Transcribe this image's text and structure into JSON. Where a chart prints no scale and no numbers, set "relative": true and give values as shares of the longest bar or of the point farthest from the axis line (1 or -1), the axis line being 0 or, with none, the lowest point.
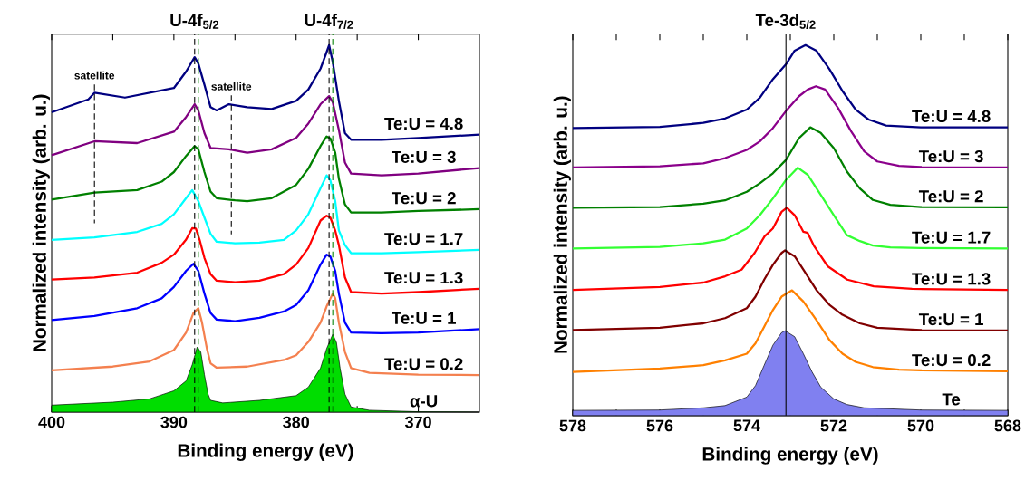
{
  "chart_data": [
    {
      "type": "line",
      "relative": true,
      "xlabel": "Binding energy (eV)",
      "ylabel": "Normalized intensity (arb. u.)",
      "xlim": [
        400,
        365
      ],
      "xticks": [
        400,
        {
          "value": 395,
          "label": null
        },
        390,
        {
          "value": 385,
          "label": null
        },
        380,
        {
          "value": 375,
          "label": null
        },
        370
      ],
      "line_style": "solid",
      "ref_lines": [
        {
          "axis": "x",
          "value": 388.3,
          "label": "U-4f$_{5/2}$",
          "color": "#000000",
          "line_style": "dashed"
        },
        {
          "axis": "x",
          "value": 388.0,
          "label": null,
          "color": "#008000",
          "line_style": "dashed"
        },
        {
          "axis": "x",
          "value": 377.3,
          "label": "U-4f$_{7/2}$",
          "color": "#000000",
          "line_style": "dashed"
        },
        {
          "axis": "x",
          "value": 377.0,
          "label": null,
          "color": "#008000",
          "line_style": "dashed"
        }
      ],
      "annotations": [
        {
          "text": "satellite",
          "x": 396.5,
          "y": 0.87
        },
        {
          "text": "satellite",
          "x": 385.3,
          "y": 0.84
        }
      ],
      "series": [
        {
          "name": "Te:U = 4.8",
          "color": "#000080",
          "x": [
            400,
            397,
            396.5,
            394,
            392,
            390,
            389,
            388.3,
            388,
            387.5,
            387,
            386.5,
            385.5,
            384,
            382,
            380,
            379,
            378,
            377.5,
            377.3,
            377,
            376.5,
            376,
            375.5,
            373,
            370,
            365
          ],
          "values": [
            0.817,
            0.852,
            0.87,
            0.857,
            0.87,
            0.883,
            0.928,
            0.967,
            0.95,
            0.892,
            0.831,
            0.822,
            0.839,
            0.831,
            0.826,
            0.848,
            0.879,
            0.936,
            0.981,
            1.0,
            0.954,
            0.848,
            0.76,
            0.742,
            0.742,
            0.747,
            0.756
          ]
        },
        {
          "name": "Te:U = 3",
          "color": "#800080",
          "x": [
            400,
            396.5,
            393,
            390,
            389,
            388.3,
            388,
            387.5,
            387,
            385.5,
            384,
            382,
            380,
            379,
            378,
            377.3,
            377,
            376.5,
            376,
            375.5,
            373,
            370,
            365
          ],
          "values": [
            0.7,
            0.738,
            0.733,
            0.764,
            0.804,
            0.839,
            0.822,
            0.76,
            0.72,
            0.716,
            0.707,
            0.716,
            0.747,
            0.786,
            0.839,
            0.861,
            0.844,
            0.769,
            0.68,
            0.65,
            0.645,
            0.65,
            0.665
          ]
        },
        {
          "name": "Te:U = 2",
          "color": "#008000",
          "x": [
            400,
            396.5,
            393,
            391,
            390,
            389,
            388.3,
            388,
            387.5,
            387,
            386.5,
            385,
            384,
            382,
            380,
            379,
            378,
            377.5,
            377.2,
            376.8,
            376.5,
            376,
            375.5,
            373,
            370,
            365
          ],
          "values": [
            0.579,
            0.598,
            0.605,
            0.628,
            0.654,
            0.698,
            0.725,
            0.716,
            0.654,
            0.601,
            0.583,
            0.577,
            0.575,
            0.583,
            0.619,
            0.663,
            0.725,
            0.751,
            0.746,
            0.707,
            0.636,
            0.566,
            0.544,
            0.544,
            0.548,
            0.553
          ]
        },
        {
          "name": "Te:U = 1.7",
          "color": "#00ffff",
          "x": [
            400,
            396.5,
            393,
            391,
            390,
            389,
            388.5,
            388,
            387.5,
            387,
            386.5,
            385,
            383,
            381,
            380,
            379,
            378,
            377.5,
            377.2,
            376.8,
            376.5,
            376,
            375.5,
            373,
            370,
            365
          ],
          "values": [
            0.469,
            0.476,
            0.491,
            0.513,
            0.539,
            0.583,
            0.605,
            0.575,
            0.53,
            0.486,
            0.464,
            0.46,
            0.462,
            0.469,
            0.495,
            0.539,
            0.61,
            0.645,
            0.632,
            0.575,
            0.495,
            0.455,
            0.433,
            0.433,
            0.436,
            0.442
          ]
        },
        {
          "name": "Te:U = 1.3",
          "color": "#ff0000",
          "x": [
            400,
            396.5,
            393,
            391,
            390,
            389,
            388.5,
            388.2,
            387.9,
            387.5,
            387,
            386.5,
            385,
            383,
            381,
            380,
            379,
            378,
            377.5,
            377.2,
            376.8,
            376.5,
            376,
            375.5,
            373,
            370,
            365
          ],
          "values": [
            0.361,
            0.367,
            0.38,
            0.407,
            0.429,
            0.47,
            0.501,
            0.5,
            0.47,
            0.42,
            0.376,
            0.358,
            0.354,
            0.358,
            0.376,
            0.402,
            0.447,
            0.522,
            0.535,
            0.53,
            0.495,
            0.455,
            0.367,
            0.327,
            0.323,
            0.327,
            0.336
          ]
        },
        {
          "name": "Te:U = 1",
          "color": "#0000ff",
          "x": [
            400,
            396.5,
            393,
            391,
            390,
            389,
            388.4,
            388,
            387.5,
            387,
            386.5,
            385,
            383,
            381,
            380,
            379,
            378,
            377.5,
            377.2,
            376.8,
            376.5,
            376,
            375.5,
            373,
            370,
            365
          ],
          "values": [
            0.251,
            0.262,
            0.283,
            0.31,
            0.341,
            0.385,
            0.404,
            0.385,
            0.323,
            0.27,
            0.252,
            0.248,
            0.257,
            0.274,
            0.292,
            0.332,
            0.402,
            0.429,
            0.424,
            0.385,
            0.323,
            0.244,
            0.217,
            0.215,
            0.217,
            0.226
          ]
        },
        {
          "name": "Te:U = 0.2",
          "color": "#f4804f",
          "x": [
            400,
            395,
            392,
            390,
            389,
            388.4,
            388,
            387.7,
            387.3,
            387,
            386.5,
            384,
            381,
            380,
            379,
            378,
            377.5,
            377,
            376.8,
            376.5,
            376,
            375.5,
            374,
            370,
            365
          ],
          "values": [
            0.114,
            0.124,
            0.138,
            0.169,
            0.217,
            0.27,
            0.283,
            0.244,
            0.173,
            0.133,
            0.121,
            0.124,
            0.142,
            0.155,
            0.191,
            0.244,
            0.288,
            0.323,
            0.31,
            0.244,
            0.164,
            0.12,
            0.107,
            0.102,
            0.101
          ]
        },
        {
          "name": "α-U",
          "type": "area",
          "color": "#00dd00",
          "x": [
            400,
            395,
            392,
            390,
            389,
            388.5,
            388.1,
            387.8,
            387.5,
            387.2,
            387,
            386,
            383,
            380,
            379,
            378,
            377.5,
            377,
            376.7,
            376.4,
            376,
            375.5,
            374,
            370,
            365
          ],
          "values": [
            0.019,
            0.027,
            0.036,
            0.058,
            0.085,
            0.129,
            0.177,
            0.164,
            0.102,
            0.049,
            0.032,
            0.025,
            0.032,
            0.045,
            0.068,
            0.12,
            0.173,
            0.212,
            0.19,
            0.12,
            0.049,
            0.014,
            0.005,
            0.001,
            0
          ]
        }
      ]
    },
    {
      "type": "line",
      "relative": true,
      "xlabel": "Binding energy (eV)",
      "ylabel": "Normalized intensity (arb. u.)",
      "xlim": [
        578,
        568
      ],
      "xticks": [
        578,
        {
          "value": 577,
          "label": null
        },
        576,
        {
          "value": 575,
          "label": null
        },
        574,
        {
          "value": 573,
          "label": null
        },
        572,
        {
          "value": 571,
          "label": null
        },
        570,
        {
          "value": 569,
          "label": null
        },
        568
      ],
      "line_style": "solid",
      "ref_lines": [
        {
          "axis": "x",
          "value": 573.1,
          "label": "Te-3d$_{5/2}$",
          "color": "#000000",
          "line_style": "solid"
        }
      ],
      "series": [
        {
          "name": "Te:U = 4.8",
          "color": "#000080",
          "x": [
            578,
            576,
            575,
            574.5,
            574,
            573.7,
            573.4,
            573.1,
            572.9,
            572.65,
            572.4,
            572.1,
            571.8,
            571.5,
            571.2,
            570.8,
            570,
            568
          ],
          "values": [
            0.776,
            0.779,
            0.79,
            0.802,
            0.826,
            0.858,
            0.908,
            0.948,
            0.985,
            1.0,
            0.985,
            0.935,
            0.876,
            0.826,
            0.799,
            0.783,
            0.778,
            0.778
          ]
        },
        {
          "name": "Te:U = 3",
          "color": "#8b008b",
          "x": [
            578,
            576,
            575,
            574.5,
            574,
            573.7,
            573.4,
            573.1,
            572.8,
            572.6,
            572.41,
            572.2,
            571.9,
            571.6,
            571.3,
            571,
            570.5,
            570,
            568
          ],
          "values": [
            0.67,
            0.673,
            0.681,
            0.695,
            0.717,
            0.74,
            0.776,
            0.822,
            0.862,
            0.88,
            0.889,
            0.88,
            0.83,
            0.767,
            0.713,
            0.686,
            0.674,
            0.671,
            0.67
          ]
        },
        {
          "name": "Te:U = 2",
          "color": "#008000",
          "x": [
            578,
            576,
            575,
            574.5,
            574,
            573.7,
            573.4,
            573.1,
            572.8,
            572.54,
            572.3,
            572,
            571.7,
            571.4,
            571.1,
            570.7,
            570,
            568
          ],
          "values": [
            0.561,
            0.563,
            0.572,
            0.581,
            0.604,
            0.627,
            0.654,
            0.69,
            0.749,
            0.778,
            0.763,
            0.722,
            0.659,
            0.613,
            0.582,
            0.569,
            0.563,
            0.562
          ]
        },
        {
          "name": "Te:U = 1.7",
          "color": "#33ff33",
          "x": [
            578,
            576,
            575,
            574.5,
            574,
            573.7,
            573.4,
            573.1,
            572.83,
            572.6,
            572.3,
            572,
            571.7,
            571.4,
            571.1,
            570.7,
            570,
            568
          ],
          "values": [
            0.451,
            0.455,
            0.465,
            0.475,
            0.505,
            0.541,
            0.586,
            0.636,
            0.669,
            0.65,
            0.596,
            0.541,
            0.487,
            0.471,
            0.459,
            0.454,
            0.452,
            0.451
          ]
        },
        {
          "name": "Te:U = 1.3",
          "color": "#ff0000",
          "x": [
            578,
            576,
            575,
            574.5,
            574.12,
            573.82,
            573.59,
            573.4,
            573.2,
            573.08,
            572.9,
            572.7,
            572.6,
            572.45,
            572.14,
            571.69,
            571.08,
            570.2,
            568
          ],
          "values": [
            0.339,
            0.347,
            0.359,
            0.376,
            0.394,
            0.439,
            0.484,
            0.505,
            0.55,
            0.561,
            0.541,
            0.496,
            0.493,
            0.457,
            0.403,
            0.367,
            0.349,
            0.342,
            0.339
          ]
        },
        {
          "name": "Te:U = 1",
          "color": "#800000",
          "x": [
            578,
            576,
            575,
            574.5,
            574,
            573.8,
            573.6,
            573.4,
            573.2,
            573.12,
            572.9,
            572.7,
            572.4,
            572.1,
            571.8,
            571.4,
            571,
            570,
            568
          ],
          "values": [
            0.231,
            0.237,
            0.249,
            0.263,
            0.29,
            0.321,
            0.367,
            0.407,
            0.439,
            0.446,
            0.43,
            0.394,
            0.339,
            0.299,
            0.272,
            0.249,
            0.237,
            0.231,
            0.23
          ]
        },
        {
          "name": "Te:U = 0.2",
          "color": "#ff8000",
          "x": [
            578,
            576,
            575,
            574.5,
            574,
            573.8,
            573.6,
            573.4,
            573.2,
            572.96,
            572.7,
            572.4,
            572.1,
            571.8,
            571.5,
            571.1,
            570.5,
            570,
            568
          ],
          "values": [
            0.118,
            0.127,
            0.136,
            0.149,
            0.167,
            0.195,
            0.24,
            0.285,
            0.321,
            0.338,
            0.308,
            0.258,
            0.204,
            0.167,
            0.145,
            0.131,
            0.124,
            0.122,
            0.12
          ]
        },
        {
          "name": "Te",
          "type": "area",
          "color": "#8080f0",
          "x": [
            578,
            576,
            575,
            574.5,
            574,
            573.8,
            573.6,
            573.4,
            573.2,
            573.12,
            572.9,
            572.7,
            572.5,
            572.3,
            572,
            571.7,
            571.3,
            570,
            568
          ],
          "values": [
            0.014,
            0.015,
            0.021,
            0.027,
            0.05,
            0.081,
            0.136,
            0.19,
            0.224,
            0.229,
            0.213,
            0.167,
            0.118,
            0.077,
            0.045,
            0.03,
            0.021,
            0.015,
            0.014
          ]
        }
      ]
    }
  ]
}
